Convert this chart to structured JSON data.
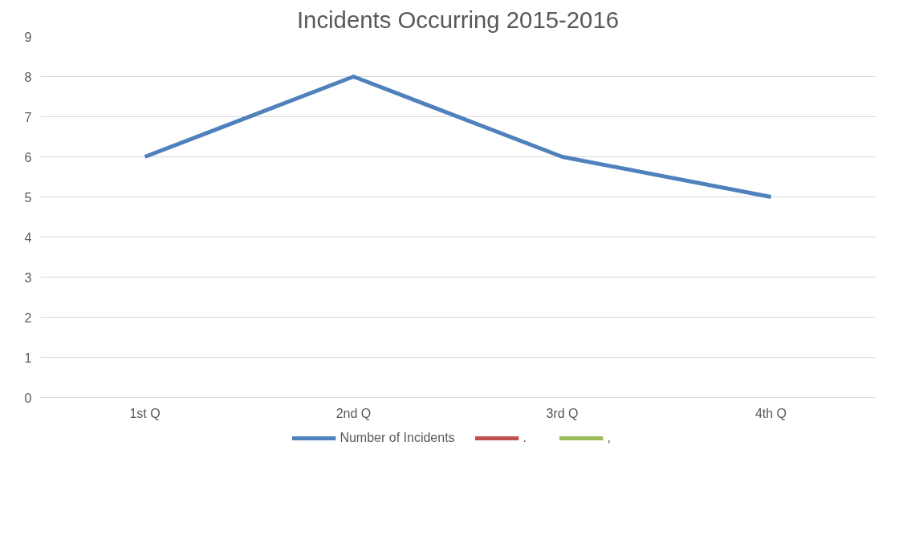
{
  "chart_data": {
    "type": "line",
    "title": "Incidents Occurring 2015-2016",
    "categories": [
      "1st Q",
      "2nd Q",
      "3rd Q",
      "4th Q"
    ],
    "series": [
      {
        "name": "Number of Incidents",
        "color": "#4f81bd",
        "values": [
          6,
          8,
          6,
          5
        ]
      },
      {
        "name": ".",
        "color": "#c0504d",
        "values": [
          null,
          null,
          null,
          null
        ]
      },
      {
        "name": ",",
        "color": "#9bbb59",
        "values": [
          null,
          null,
          null,
          null
        ]
      }
    ],
    "ylim": [
      0,
      9
    ],
    "yticks": [
      0,
      1,
      2,
      3,
      4,
      5,
      6,
      7,
      8,
      9
    ],
    "grid": "y",
    "legend": "bottom",
    "marker": "none",
    "line_style": "solid"
  }
}
